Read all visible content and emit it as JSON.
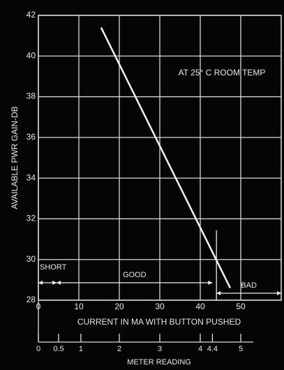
{
  "chart_data": {
    "type": "line",
    "y_label": "AVAILABLE PWR GAIN-DB",
    "x_label": "CURRENT IN MA WITH BUTTON PUSHED",
    "x2_label": "METER READING",
    "annotation": "AT 25° C ROOM TEMP",
    "xlim": [
      0,
      60
    ],
    "xticks": [
      0,
      10,
      20,
      30,
      40,
      50
    ],
    "ylim": [
      28,
      42
    ],
    "yticks": [
      28,
      30,
      32,
      34,
      36,
      38,
      40,
      42
    ],
    "grid": true,
    "series": [
      {
        "color": "#f2f2f2",
        "x": [
          15.5,
          47.4
        ],
        "values": [
          41.4,
          28.6
        ]
      }
    ],
    "meter_ticks": [
      {
        "value": 0,
        "label": "0"
      },
      {
        "value": 5,
        "label": "0.5"
      },
      {
        "value": 10.5,
        "label": "1"
      },
      {
        "value": 20,
        "label": "2"
      },
      {
        "value": 30,
        "label": "3"
      },
      {
        "value": 40,
        "label": "4"
      },
      {
        "value": 43,
        "label": "4.4"
      },
      {
        "value": 50,
        "label": "5"
      }
    ],
    "regions": [
      {
        "label": "SHORT",
        "from": 0,
        "to": 4.5
      },
      {
        "label": "GOOD",
        "from": 4.5,
        "to": 43
      },
      {
        "label": "BAD",
        "from": 44,
        "to": 60
      }
    ]
  }
}
